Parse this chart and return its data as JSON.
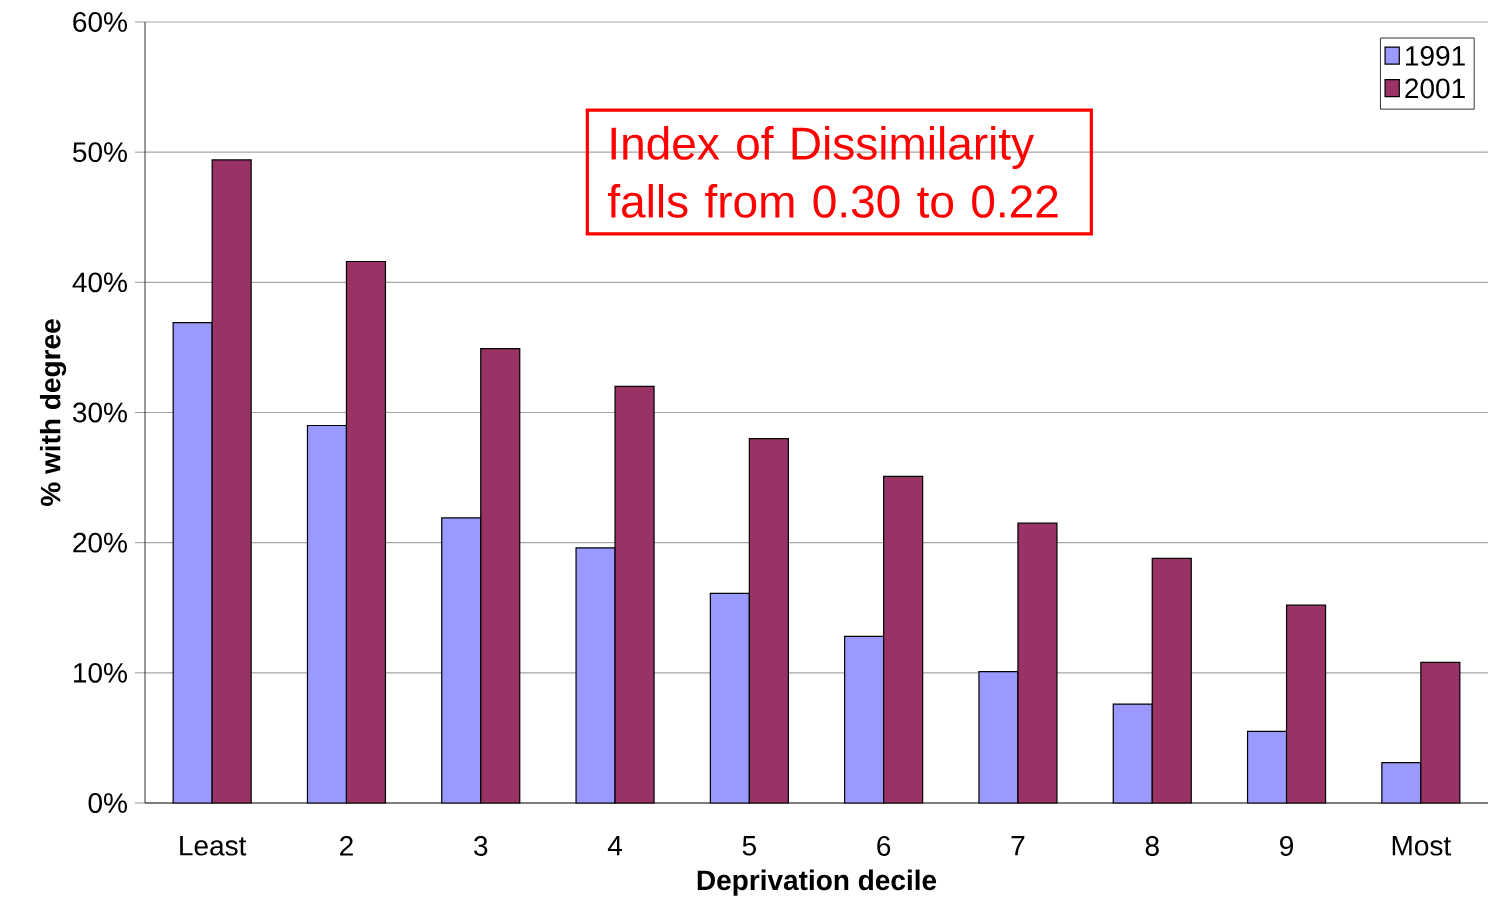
{
  "chart_data": {
    "type": "bar",
    "categories": [
      "Least",
      "2",
      "3",
      "4",
      "5",
      "6",
      "7",
      "8",
      "9",
      "Most"
    ],
    "series": [
      {
        "name": "1991",
        "color": "#9999ff",
        "values": [
          36.9,
          29.0,
          21.9,
          19.6,
          16.1,
          12.8,
          10.1,
          7.6,
          5.5,
          3.1
        ]
      },
      {
        "name": "2001",
        "color": "#993366",
        "values": [
          49.4,
          41.6,
          34.9,
          32.0,
          28.0,
          25.1,
          21.5,
          18.8,
          15.2,
          10.8
        ]
      }
    ],
    "ylim": [
      0,
      60
    ],
    "yticks": [
      {
        "value": 0,
        "label": "0%"
      },
      {
        "value": 10,
        "label": "10%"
      },
      {
        "value": 20,
        "label": "20%"
      },
      {
        "value": 30,
        "label": "30%"
      },
      {
        "value": 40,
        "label": "40%"
      },
      {
        "value": 50,
        "label": "50%"
      },
      {
        "value": 60,
        "label": "60%"
      }
    ],
    "xlabel": "Deprivation decile",
    "ylabel": "% with degree",
    "annotations": [
      "Index of Dissimilarity falls from 0.30 to 0.22"
    ],
    "grid": "y",
    "legend": "top right"
  }
}
